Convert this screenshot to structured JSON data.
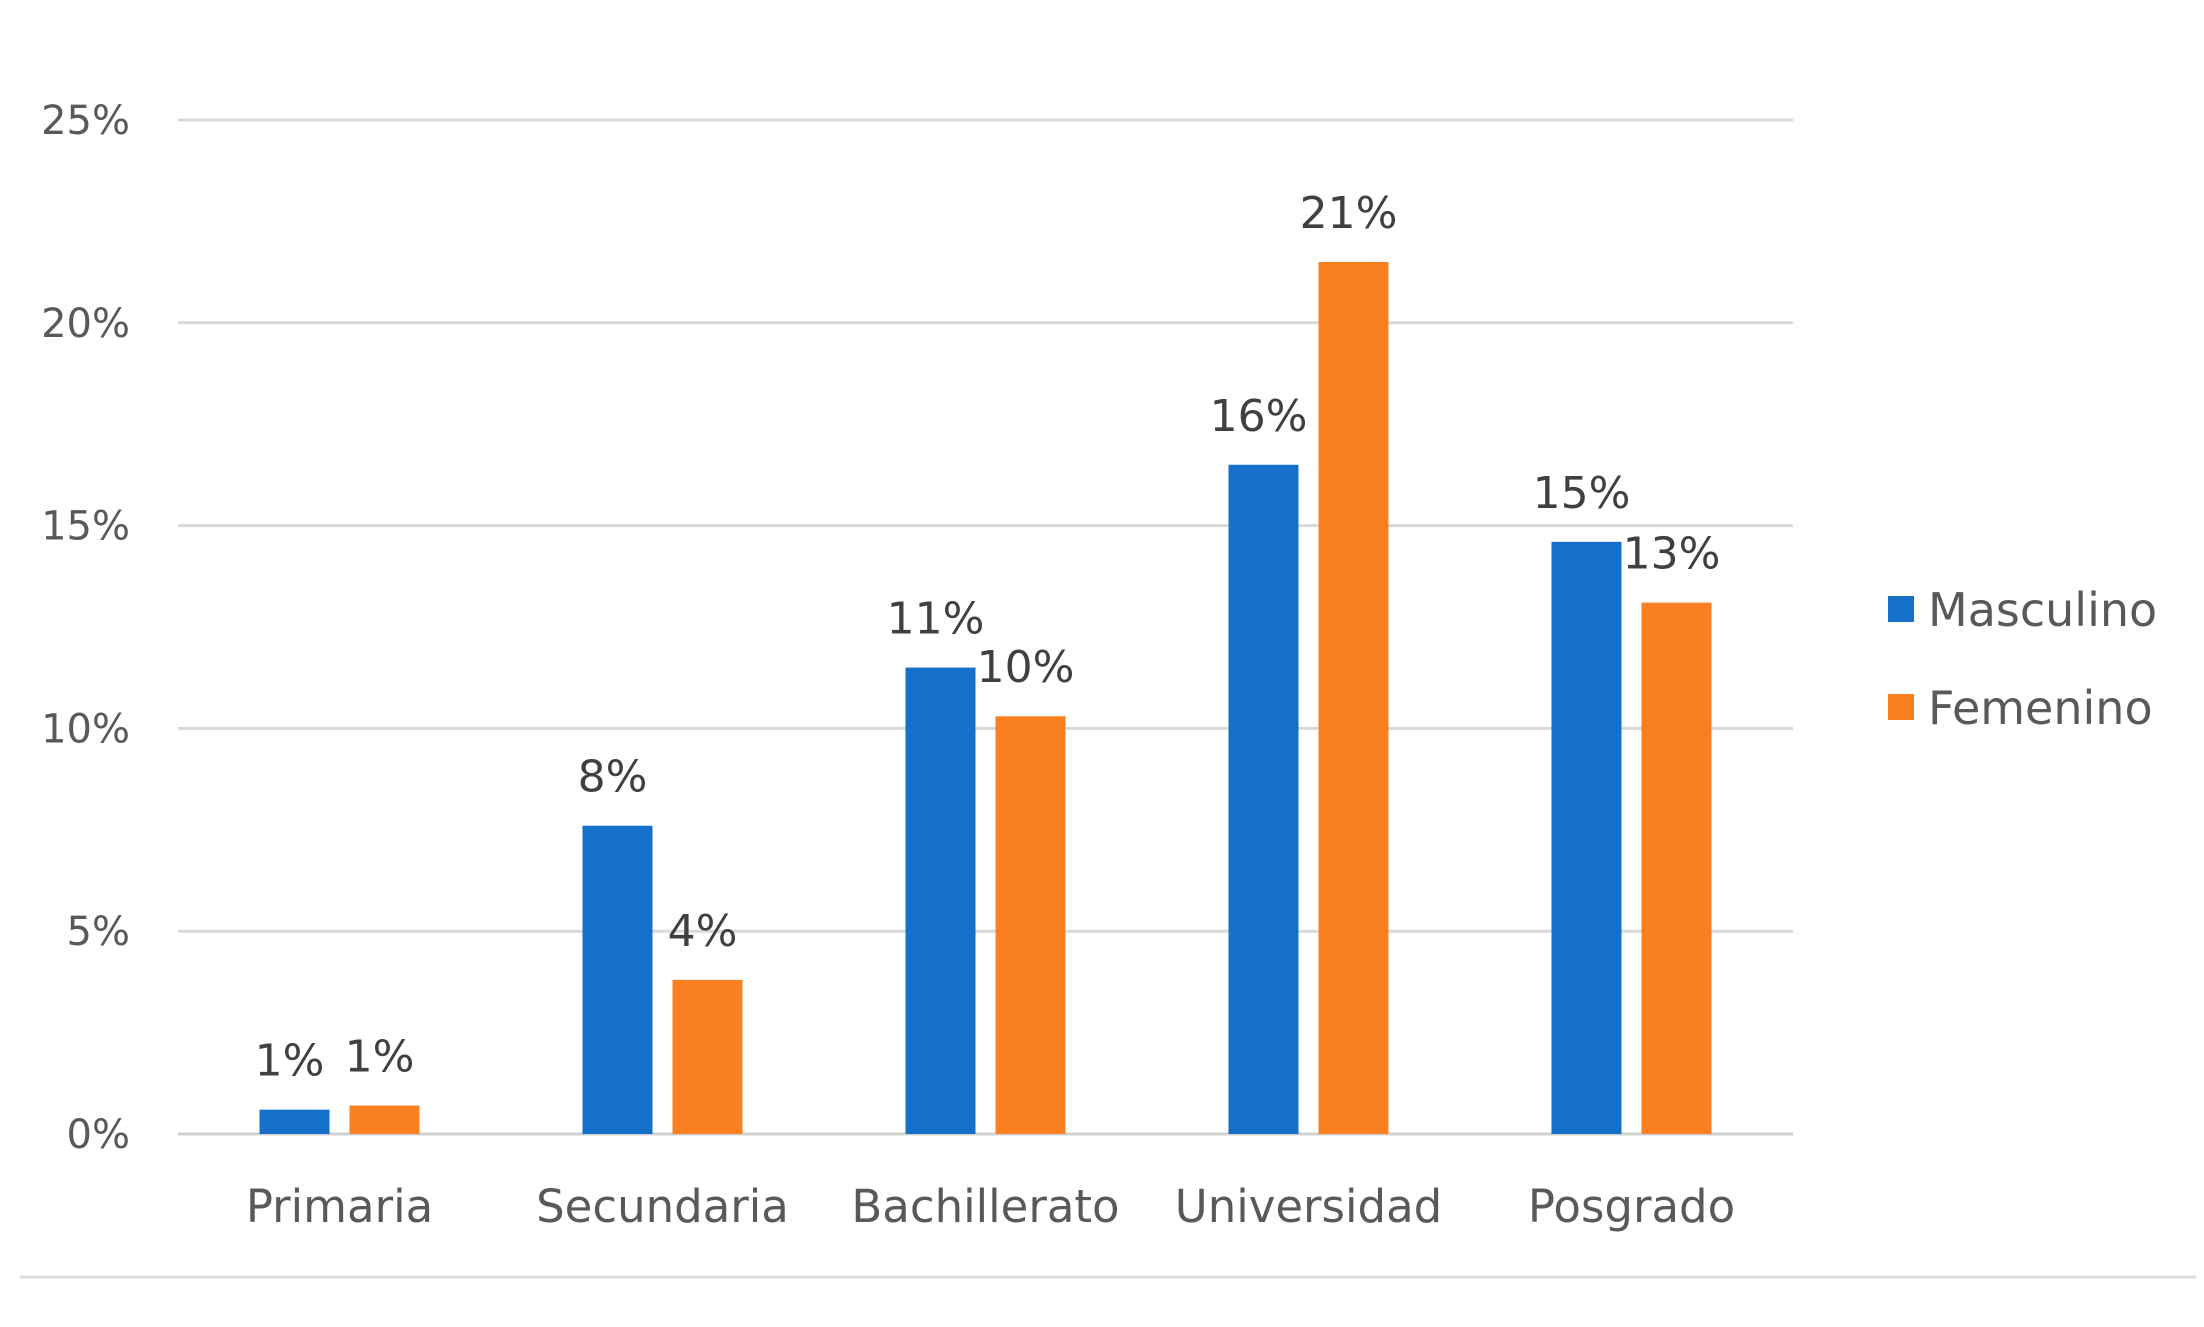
{
  "chart_data": {
    "type": "bar",
    "title": "",
    "xlabel": "",
    "ylabel": "",
    "categories": [
      "Primaria",
      "Secundaria",
      "Bachillerato",
      "Universidad",
      "Posgrado"
    ],
    "series": [
      {
        "name": "Masculino",
        "color": "#1570CA",
        "values": [
          0.6,
          7.6,
          11.5,
          16.5,
          14.6
        ],
        "labels": [
          "1%",
          "8%",
          "11%",
          "16%",
          "15%"
        ]
      },
      {
        "name": "Femenino",
        "color": "#FA7F20",
        "values": [
          0.7,
          3.8,
          10.3,
          21.5,
          13.1
        ],
        "labels": [
          "1%",
          "4%",
          "10%",
          "21%",
          "13%"
        ]
      }
    ],
    "ylim": [
      0,
      25
    ],
    "yticks": [
      0,
      5,
      10,
      15,
      20,
      25
    ],
    "ytick_labels": [
      "0%",
      "5%",
      "10%",
      "15%",
      "20%",
      "25%"
    ],
    "grid": true,
    "legend": "right"
  }
}
